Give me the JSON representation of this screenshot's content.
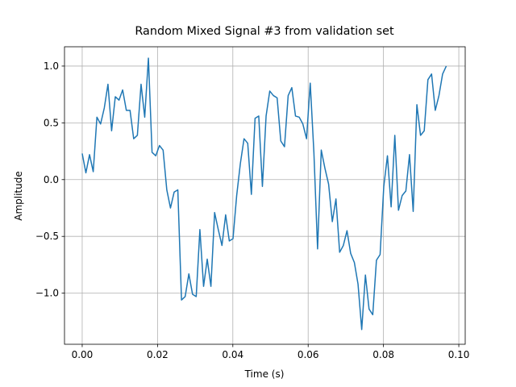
{
  "chart_data": {
    "type": "line",
    "title": "Random Mixed Signal #3 from validation set",
    "x_label": "Time (s)",
    "y_label": "Amplitude",
    "grid": true,
    "xlim": [
      -0.0047,
      0.1017
    ],
    "ylim": [
      -1.45,
      1.17
    ],
    "xticks": [
      {
        "value": 0,
        "label": "0.00"
      },
      {
        "value": 0.02,
        "label": "0.02"
      },
      {
        "value": 0.04,
        "label": "0.04"
      },
      {
        "value": 0.06,
        "label": "0.06"
      },
      {
        "value": 0.08,
        "label": "0.08"
      },
      {
        "value": 0.1,
        "label": "0.10"
      }
    ],
    "yticks": [
      {
        "value": -1,
        "label": "−1.0"
      },
      {
        "value": -0.5,
        "label": "−0.5"
      },
      {
        "value": 0,
        "label": "0.0"
      },
      {
        "value": 0.5,
        "label": "0.5"
      },
      {
        "value": 1,
        "label": "1.0"
      }
    ],
    "x": [
      0,
      0.00098,
      0.00195,
      0.00293,
      0.00391,
      0.00488,
      0.00586,
      0.00684,
      0.00781,
      0.00879,
      0.00977,
      0.01074,
      0.01172,
      0.0127,
      0.01367,
      0.01465,
      0.01563,
      0.0166,
      0.01758,
      0.01855,
      0.01953,
      0.02051,
      0.02148,
      0.02246,
      0.02344,
      0.02441,
      0.02539,
      0.02637,
      0.02734,
      0.02832,
      0.0293,
      0.03027,
      0.03125,
      0.03223,
      0.0332,
      0.03418,
      0.03516,
      0.03613,
      0.03711,
      0.03809,
      0.03906,
      0.04004,
      0.04102,
      0.04199,
      0.04297,
      0.04395,
      0.04492,
      0.0459,
      0.04688,
      0.04785,
      0.04883,
      0.0498,
      0.05078,
      0.05176,
      0.05273,
      0.05371,
      0.05469,
      0.05566,
      0.05664,
      0.05762,
      0.05859,
      0.05957,
      0.06055,
      0.06152,
      0.0625,
      0.06348,
      0.06445,
      0.06543,
      0.06641,
      0.06738,
      0.06836,
      0.06934,
      0.07031,
      0.07129,
      0.07227,
      0.07324,
      0.07422,
      0.0752,
      0.07617,
      0.07715,
      0.07813,
      0.0791,
      0.08008,
      0.08105,
      0.08203,
      0.08301,
      0.08398,
      0.08496,
      0.08594,
      0.08691,
      0.08789,
      0.08887,
      0.08984,
      0.09082,
      0.0918,
      0.09277,
      0.09375,
      0.09473,
      0.0957,
      0.09668
    ],
    "series": [
      {
        "color": "#1f77b4",
        "values": [
          0.23,
          0.06,
          0.22,
          0.07,
          0.55,
          0.49,
          0.63,
          0.84,
          0.43,
          0.73,
          0.7,
          0.79,
          0.61,
          0.61,
          0.36,
          0.39,
          0.84,
          0.55,
          1.07,
          0.24,
          0.21,
          0.3,
          0.26,
          -0.09,
          -0.25,
          -0.11,
          -0.09,
          -1.06,
          -1.03,
          -0.83,
          -1.01,
          -1.03,
          -0.44,
          -0.94,
          -0.7,
          -0.94,
          -0.29,
          -0.44,
          -0.58,
          -0.31,
          -0.54,
          -0.52,
          -0.14,
          0.14,
          0.36,
          0.32,
          -0.13,
          0.54,
          0.56,
          -0.06,
          0.56,
          0.78,
          0.74,
          0.72,
          0.34,
          0.29,
          0.74,
          0.81,
          0.56,
          0.55,
          0.49,
          0.36,
          0.85,
          0.24,
          -0.61,
          0.26,
          0.1,
          -0.04,
          -0.37,
          -0.17,
          -0.64,
          -0.58,
          -0.45,
          -0.65,
          -0.73,
          -0.92,
          -1.32,
          -0.84,
          -1.14,
          -1.19,
          -0.71,
          -0.66,
          -0.06,
          0.21,
          -0.24,
          0.39,
          -0.27,
          -0.14,
          -0.1,
          0.22,
          -0.28,
          0.66,
          0.39,
          0.43,
          0.88,
          0.93,
          0.61,
          0.74,
          0.93,
          1.0
        ]
      }
    ]
  }
}
